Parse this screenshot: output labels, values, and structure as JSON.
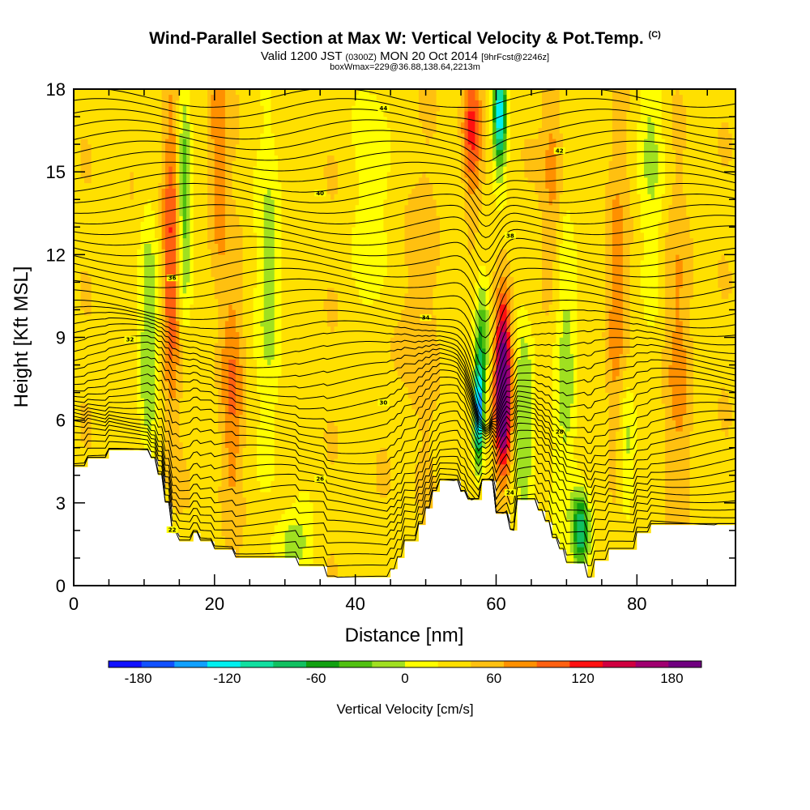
{
  "header": {
    "title": "Wind-Parallel Section at Max W: Vertical Velocity & Pot.Temp.",
    "copyright": "(C)",
    "valid_prefix": "Valid 1200 JST",
    "valid_z": "(0300Z)",
    "valid_date": "MON 20 Oct 2014",
    "forecast": "[9hrFcst@2246z]",
    "box_info": "boxWmax=229@36.88,138.64,2213m"
  },
  "colors": {
    "scale": [
      "#1010ff",
      "#1050ff",
      "#10a0ff",
      "#00f0f0",
      "#10e0a0",
      "#10c060",
      "#10a010",
      "#50c010",
      "#a0e020",
      "#ffff00",
      "#ffe000",
      "#ffc010",
      "#ff9000",
      "#ff6010",
      "#ff1010",
      "#d00040",
      "#a00070",
      "#700080"
    ],
    "terrain": "#ffffff",
    "contour": "#000000"
  },
  "chart_data": {
    "type": "heatmap",
    "title": "Wind-Parallel Section at Max W: Vertical Velocity & Pot.Temp.",
    "xlabel": "Distance [nm]",
    "ylabel": "Height [Kft MSL]",
    "xlim": [
      0,
      94
    ],
    "ylim": [
      0,
      18
    ],
    "x_ticks": [
      0,
      20,
      40,
      60,
      80
    ],
    "y_ticks": [
      0,
      3,
      6,
      9,
      12,
      15,
      18
    ],
    "colorbar": {
      "label": "Vertical Velocity [cm/s]",
      "range": [
        -200,
        200
      ],
      "step": 20,
      "tick_values": [
        -180,
        -120,
        -60,
        0,
        60,
        120,
        180
      ],
      "tick_labels": [
        "-180",
        "-120",
        "-60",
        "0",
        "60",
        "120",
        "180"
      ]
    },
    "terrain_kft": [
      [
        0,
        4.3
      ],
      [
        2,
        4.3
      ],
      [
        2,
        4.6
      ],
      [
        5,
        4.6
      ],
      [
        5,
        4.9
      ],
      [
        11,
        4.9
      ],
      [
        11,
        4.6
      ],
      [
        12,
        4.6
      ],
      [
        12,
        4.0
      ],
      [
        13,
        4.0
      ],
      [
        13,
        3.0
      ],
      [
        14,
        3.0
      ],
      [
        14,
        1.9
      ],
      [
        15,
        1.9
      ],
      [
        15,
        1.6
      ],
      [
        17,
        1.6
      ],
      [
        17,
        1.9
      ],
      [
        18,
        1.9
      ],
      [
        18,
        1.6
      ],
      [
        20,
        1.6
      ],
      [
        20,
        1.3
      ],
      [
        23,
        1.3
      ],
      [
        23,
        1.0
      ],
      [
        32,
        1.0
      ],
      [
        32,
        0.7
      ],
      [
        36,
        0.7
      ],
      [
        36,
        0.3
      ],
      [
        45,
        0.3
      ],
      [
        45,
        0.6
      ],
      [
        46,
        0.6
      ],
      [
        46,
        1.0
      ],
      [
        47,
        1.0
      ],
      [
        47,
        1.6
      ],
      [
        49,
        1.6
      ],
      [
        49,
        2.2
      ],
      [
        50,
        2.2
      ],
      [
        50,
        2.8
      ],
      [
        51,
        2.8
      ],
      [
        51,
        3.4
      ],
      [
        52,
        3.4
      ],
      [
        52,
        3.8
      ],
      [
        55,
        3.8
      ],
      [
        55,
        3.4
      ],
      [
        56,
        3.4
      ],
      [
        56,
        3.1
      ],
      [
        58,
        3.1
      ],
      [
        58,
        3.8
      ],
      [
        60,
        3.8
      ],
      [
        60,
        2.6
      ],
      [
        62,
        2.6
      ],
      [
        62,
        2.0
      ],
      [
        63,
        2.0
      ],
      [
        63,
        3.1
      ],
      [
        66,
        3.1
      ],
      [
        66,
        2.7
      ],
      [
        67,
        2.7
      ],
      [
        67,
        2.3
      ],
      [
        68,
        2.3
      ],
      [
        68,
        1.7
      ],
      [
        69,
        1.7
      ],
      [
        69,
        1.3
      ],
      [
        70,
        1.3
      ],
      [
        70,
        0.8
      ],
      [
        73,
        0.8
      ],
      [
        73,
        0.3
      ],
      [
        74,
        0.3
      ],
      [
        74,
        0.9
      ],
      [
        76,
        0.9
      ],
      [
        76,
        1.3
      ],
      [
        80,
        1.3
      ],
      [
        80,
        1.9
      ],
      [
        82,
        1.9
      ],
      [
        82,
        2.2
      ],
      [
        94,
        2.2
      ]
    ],
    "w_features": [
      {
        "x": 10.5,
        "z": 9,
        "w": -55,
        "sx": 1.3,
        "sz": 4.5
      },
      {
        "x": 13.8,
        "z": 12,
        "w": 70,
        "sx": 1.3,
        "sz": 6
      },
      {
        "x": 15.7,
        "z": 14,
        "w": -75,
        "sx": 1.0,
        "sz": 4.5
      },
      {
        "x": 20.5,
        "z": 16,
        "w": 45,
        "sx": 1.4,
        "sz": 5
      },
      {
        "x": 22.5,
        "z": 7,
        "w": 45,
        "sx": 1.6,
        "sz": 4
      },
      {
        "x": 28,
        "z": 11,
        "w": -40,
        "sx": 1.8,
        "sz": 6
      },
      {
        "x": 31,
        "z": 1.5,
        "w": -50,
        "sx": 2.5,
        "sz": 1.2
      },
      {
        "x": 43,
        "z": 14,
        "w": -30,
        "sx": 2.5,
        "sz": 5
      },
      {
        "x": 48,
        "z": 10,
        "w": 20,
        "sx": 3,
        "sz": 6
      },
      {
        "x": 57.5,
        "z": 6.3,
        "w": -170,
        "sx": 0.7,
        "sz": 1.8
      },
      {
        "x": 58,
        "z": 9,
        "w": -70,
        "sx": 1.0,
        "sz": 2.5
      },
      {
        "x": 61,
        "z": 7.2,
        "w": 200,
        "sx": 1.1,
        "sz": 3.0
      },
      {
        "x": 56.5,
        "z": 16.5,
        "w": 70,
        "sx": 1.3,
        "sz": 2.5
      },
      {
        "x": 60.5,
        "z": 17,
        "w": -150,
        "sx": 0.9,
        "sz": 1.8
      },
      {
        "x": 64,
        "z": 6,
        "w": -60,
        "sx": 1.4,
        "sz": 4
      },
      {
        "x": 68,
        "z": 15,
        "w": 40,
        "sx": 1.5,
        "sz": 5
      },
      {
        "x": 70,
        "z": 8,
        "w": -45,
        "sx": 1.6,
        "sz": 6
      },
      {
        "x": 72,
        "z": 2,
        "w": -110,
        "sx": 1.2,
        "sz": 1.5
      },
      {
        "x": 77,
        "z": 10,
        "w": 40,
        "sx": 1.5,
        "sz": 6
      },
      {
        "x": 78.5,
        "z": 5,
        "w": -45,
        "sx": 1.2,
        "sz": 3
      },
      {
        "x": 82,
        "z": 16,
        "w": -30,
        "sx": 2,
        "sz": 5
      },
      {
        "x": 86,
        "z": 8,
        "w": 30,
        "sx": 2,
        "sz": 6
      }
    ],
    "contour_levels": [
      [
        21.5,
        ""
      ],
      [
        22,
        "22"
      ],
      [
        22.5,
        ""
      ],
      [
        23,
        ""
      ],
      [
        23.5,
        ""
      ],
      [
        24,
        "24"
      ],
      [
        24.5,
        ""
      ],
      [
        25,
        ""
      ],
      [
        25.5,
        ""
      ],
      [
        26,
        "26"
      ],
      [
        26.5,
        ""
      ],
      [
        27,
        ""
      ],
      [
        27.5,
        ""
      ],
      [
        28,
        "28"
      ],
      [
        28.5,
        ""
      ],
      [
        29,
        ""
      ],
      [
        29.5,
        ""
      ],
      [
        30,
        "30"
      ],
      [
        30.5,
        ""
      ],
      [
        31,
        ""
      ],
      [
        31.5,
        ""
      ],
      [
        32,
        "32"
      ],
      [
        32.5,
        ""
      ],
      [
        33,
        ""
      ],
      [
        33.5,
        ""
      ],
      [
        34,
        "34"
      ],
      [
        34.5,
        ""
      ],
      [
        35,
        ""
      ],
      [
        35.5,
        ""
      ],
      [
        36,
        "36"
      ],
      [
        36.5,
        ""
      ],
      [
        37,
        ""
      ],
      [
        37.5,
        ""
      ],
      [
        38,
        "38"
      ],
      [
        38.5,
        ""
      ],
      [
        39,
        ""
      ],
      [
        39.5,
        ""
      ],
      [
        40,
        "40"
      ],
      [
        40.5,
        ""
      ],
      [
        41,
        ""
      ],
      [
        41.5,
        ""
      ],
      [
        42,
        "42"
      ],
      [
        42.5,
        ""
      ],
      [
        43,
        ""
      ],
      [
        43.5,
        ""
      ],
      [
        44,
        "44"
      ],
      [
        44.5,
        ""
      ]
    ]
  }
}
